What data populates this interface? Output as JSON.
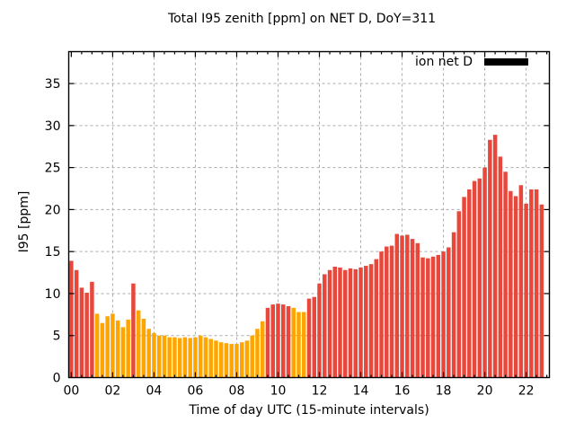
{
  "title": "Total I95 zenith [ppm] on NET D, DoY=311",
  "chart_data": {
    "type": "bar",
    "title": "Total I95 zenith [ppm] on NET D, DoY=311",
    "xlabel": "Time of day UTC (15-minute intervals)",
    "ylabel": "I95 [ppm]",
    "interval_minutes": 15,
    "ylim": [
      0,
      38.8
    ],
    "xlim_hours": [
      -0.125,
      23.125
    ],
    "grid": true,
    "grid_color": "#aaaaaa",
    "border_color": "#000000",
    "legend": {
      "label": "ion net D",
      "swatch_color": "#000000",
      "position": "top-right-inside"
    },
    "yticks": [
      0,
      5,
      10,
      15,
      20,
      25,
      30,
      35
    ],
    "xticks": {
      "hours": [
        0,
        2,
        4,
        6,
        8,
        10,
        12,
        14,
        16,
        18,
        20,
        22
      ],
      "labels": [
        "00",
        "02",
        "04",
        "06",
        "08",
        "10",
        "12",
        "14",
        "16",
        "18",
        "20",
        "22"
      ]
    },
    "minor_xtick_hours": 0.5,
    "colors": {
      "red": "#e8473c",
      "orange": "#ffa500"
    },
    "color_runs": [
      {
        "color": "red",
        "count": 5
      },
      {
        "color": "orange",
        "count": 7
      },
      {
        "color": "red",
        "count": 1
      },
      {
        "color": "orange",
        "count": 25
      },
      {
        "color": "red",
        "count": 5
      },
      {
        "color": "orange",
        "count": 3
      },
      {
        "color": "red",
        "count": 46
      }
    ],
    "categories": [
      "00:00",
      "00:15",
      "00:30",
      "00:45",
      "01:00",
      "01:15",
      "01:30",
      "01:45",
      "02:00",
      "02:15",
      "02:30",
      "02:45",
      "03:00",
      "03:15",
      "03:30",
      "03:45",
      "04:00",
      "04:15",
      "04:30",
      "04:45",
      "05:00",
      "05:15",
      "05:30",
      "05:45",
      "06:00",
      "06:15",
      "06:30",
      "06:45",
      "07:00",
      "07:15",
      "07:30",
      "07:45",
      "08:00",
      "08:15",
      "08:30",
      "08:45",
      "09:00",
      "09:15",
      "09:30",
      "09:45",
      "10:00",
      "10:15",
      "10:30",
      "10:45",
      "11:00",
      "11:15",
      "11:30",
      "11:45",
      "12:00",
      "12:15",
      "12:30",
      "12:45",
      "13:00",
      "13:15",
      "13:30",
      "13:45",
      "14:00",
      "14:15",
      "14:30",
      "14:45",
      "15:00",
      "15:15",
      "15:30",
      "15:45",
      "16:00",
      "16:15",
      "16:30",
      "16:45",
      "17:00",
      "17:15",
      "17:30",
      "17:45",
      "18:00",
      "18:15",
      "18:30",
      "18:45",
      "19:00",
      "19:15",
      "19:30",
      "19:45",
      "20:00",
      "20:15",
      "20:30",
      "20:45",
      "21:00",
      "21:15",
      "21:30",
      "21:45",
      "22:00",
      "22:15",
      "22:30",
      "22:45"
    ],
    "values": [
      13.9,
      12.8,
      10.7,
      10.1,
      11.4,
      7.6,
      6.5,
      7.3,
      7.6,
      6.8,
      6.0,
      6.9,
      11.2,
      8.0,
      7.0,
      5.8,
      5.3,
      5.0,
      5.0,
      4.8,
      4.8,
      4.7,
      4.8,
      4.7,
      4.8,
      5.0,
      4.8,
      4.6,
      4.4,
      4.2,
      4.1,
      4.0,
      4.0,
      4.2,
      4.4,
      5.0,
      5.8,
      6.7,
      8.3,
      8.7,
      8.8,
      8.7,
      8.5,
      8.3,
      7.8,
      7.8,
      9.4,
      9.6,
      11.2,
      12.3,
      12.8,
      13.2,
      13.1,
      12.8,
      13.0,
      12.9,
      13.1,
      13.3,
      13.5,
      14.1,
      15.0,
      15.6,
      15.7,
      17.1,
      16.9,
      17.0,
      16.5,
      16.0,
      14.3,
      14.2,
      14.4,
      14.6,
      15.0,
      15.5,
      17.3,
      19.8,
      21.5,
      22.4,
      23.4,
      23.7,
      25.0,
      28.3,
      28.9,
      26.3,
      24.5,
      22.2,
      21.6,
      22.9,
      20.7,
      22.4,
      22.4,
      20.6
    ]
  }
}
